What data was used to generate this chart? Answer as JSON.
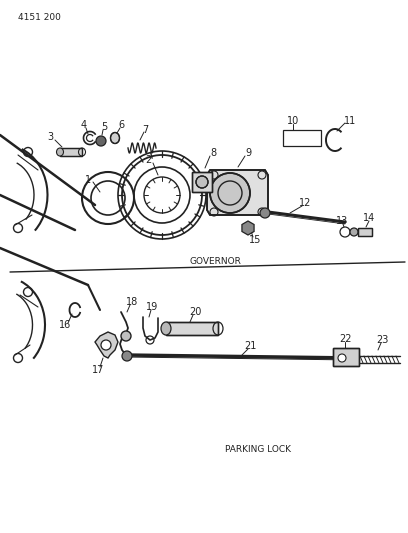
{
  "title": "4151 200",
  "governor_label": "GOVERNOR",
  "parking_label": "PARKING LOCK",
  "bg_color": "#ffffff",
  "line_color": "#222222",
  "text_color": "#222222",
  "fig_width": 4.08,
  "fig_height": 5.33,
  "dpi": 100
}
